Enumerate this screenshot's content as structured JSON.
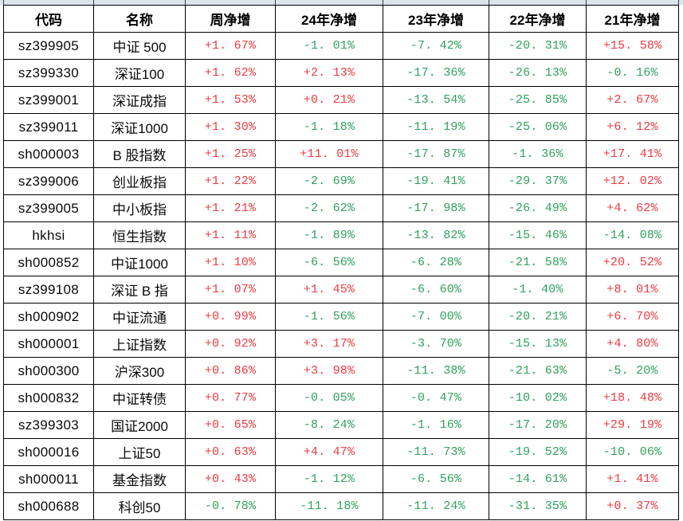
{
  "colors": {
    "positive_value": "#ee3a41",
    "negative_value": "#2fa15d",
    "band": "#dce4f0"
  },
  "table": {
    "columns": [
      "代码",
      "名称",
      "周净增",
      "24年净增",
      "23年净增",
      "22年净增",
      "21年净增"
    ],
    "rows": [
      {
        "code": "sz399905",
        "name": "中证 500",
        "values": [
          "+1. 67%",
          "-1. 01%",
          "-7. 42%",
          "-20. 31%",
          "+15. 58%"
        ]
      },
      {
        "code": "sz399330",
        "name": "深证100",
        "values": [
          "+1. 62%",
          "+2. 13%",
          "-17. 36%",
          "-26. 13%",
          "-0. 16%"
        ]
      },
      {
        "code": "sz399001",
        "name": "深证成指",
        "values": [
          "+1. 53%",
          "+0. 21%",
          "-13. 54%",
          "-25. 85%",
          "+2. 67%"
        ]
      },
      {
        "code": "sz399011",
        "name": "深证1000",
        "values": [
          "+1. 30%",
          "-1. 18%",
          "-11. 19%",
          "-25. 06%",
          "+6. 12%"
        ]
      },
      {
        "code": "sh000003",
        "name": "B 股指数",
        "values": [
          "+1. 25%",
          "+11. 01%",
          "-17. 87%",
          "-1. 36%",
          "+17. 41%"
        ]
      },
      {
        "code": "sz399006",
        "name": "创业板指",
        "values": [
          "+1. 22%",
          "-2. 69%",
          "-19. 41%",
          "-29. 37%",
          "+12. 02%"
        ]
      },
      {
        "code": "sz399005",
        "name": "中小板指",
        "values": [
          "+1. 21%",
          "-2. 62%",
          "-17. 98%",
          "-26. 49%",
          "+4. 62%"
        ]
      },
      {
        "code": "hkhsi",
        "name": "恒生指数",
        "values": [
          "+1. 11%",
          "-1. 89%",
          "-13. 82%",
          "-15. 46%",
          "-14. 08%"
        ]
      },
      {
        "code": "sh000852",
        "name": "中证1000",
        "values": [
          "+1. 10%",
          "-6. 56%",
          "-6. 28%",
          "-21. 58%",
          "+20. 52%"
        ]
      },
      {
        "code": "sz399108",
        "name": "深证 B 指",
        "values": [
          "+1. 07%",
          "+1. 45%",
          "-6. 60%",
          "-1. 40%",
          "+8. 01%"
        ]
      },
      {
        "code": "sh000902",
        "name": "中证流通",
        "values": [
          "+0. 99%",
          "-1. 56%",
          "-7. 00%",
          "-20. 21%",
          "+6. 70%"
        ]
      },
      {
        "code": "sh000001",
        "name": "上证指数",
        "values": [
          "+0. 92%",
          "+3. 17%",
          "-3. 70%",
          "-15. 13%",
          "+4. 80%"
        ]
      },
      {
        "code": "sh000300",
        "name": "沪深300",
        "values": [
          "+0. 86%",
          "+3. 98%",
          "-11. 38%",
          "-21. 63%",
          "-5. 20%"
        ]
      },
      {
        "code": "sh000832",
        "name": "中证转债",
        "values": [
          "+0. 77%",
          "-0. 05%",
          "-0. 47%",
          "-10. 02%",
          "+18. 48%"
        ]
      },
      {
        "code": "sz399303",
        "name": "国证2000",
        "values": [
          "+0. 65%",
          "-8. 24%",
          "-1. 16%",
          "-17. 20%",
          "+29. 19%"
        ]
      },
      {
        "code": "sh000016",
        "name": "上证50",
        "values": [
          "+0. 63%",
          "+4. 47%",
          "-11. 73%",
          "-19. 52%",
          "-10. 06%"
        ]
      },
      {
        "code": "sh000011",
        "name": "基金指数",
        "values": [
          "+0. 43%",
          "-1. 12%",
          "-6. 56%",
          "-14. 61%",
          "+1. 41%"
        ]
      },
      {
        "code": "sh000688",
        "name": "科创50",
        "values": [
          "-0. 78%",
          "-11. 18%",
          "-11. 24%",
          "-31. 35%",
          "+0. 37%"
        ]
      }
    ]
  }
}
